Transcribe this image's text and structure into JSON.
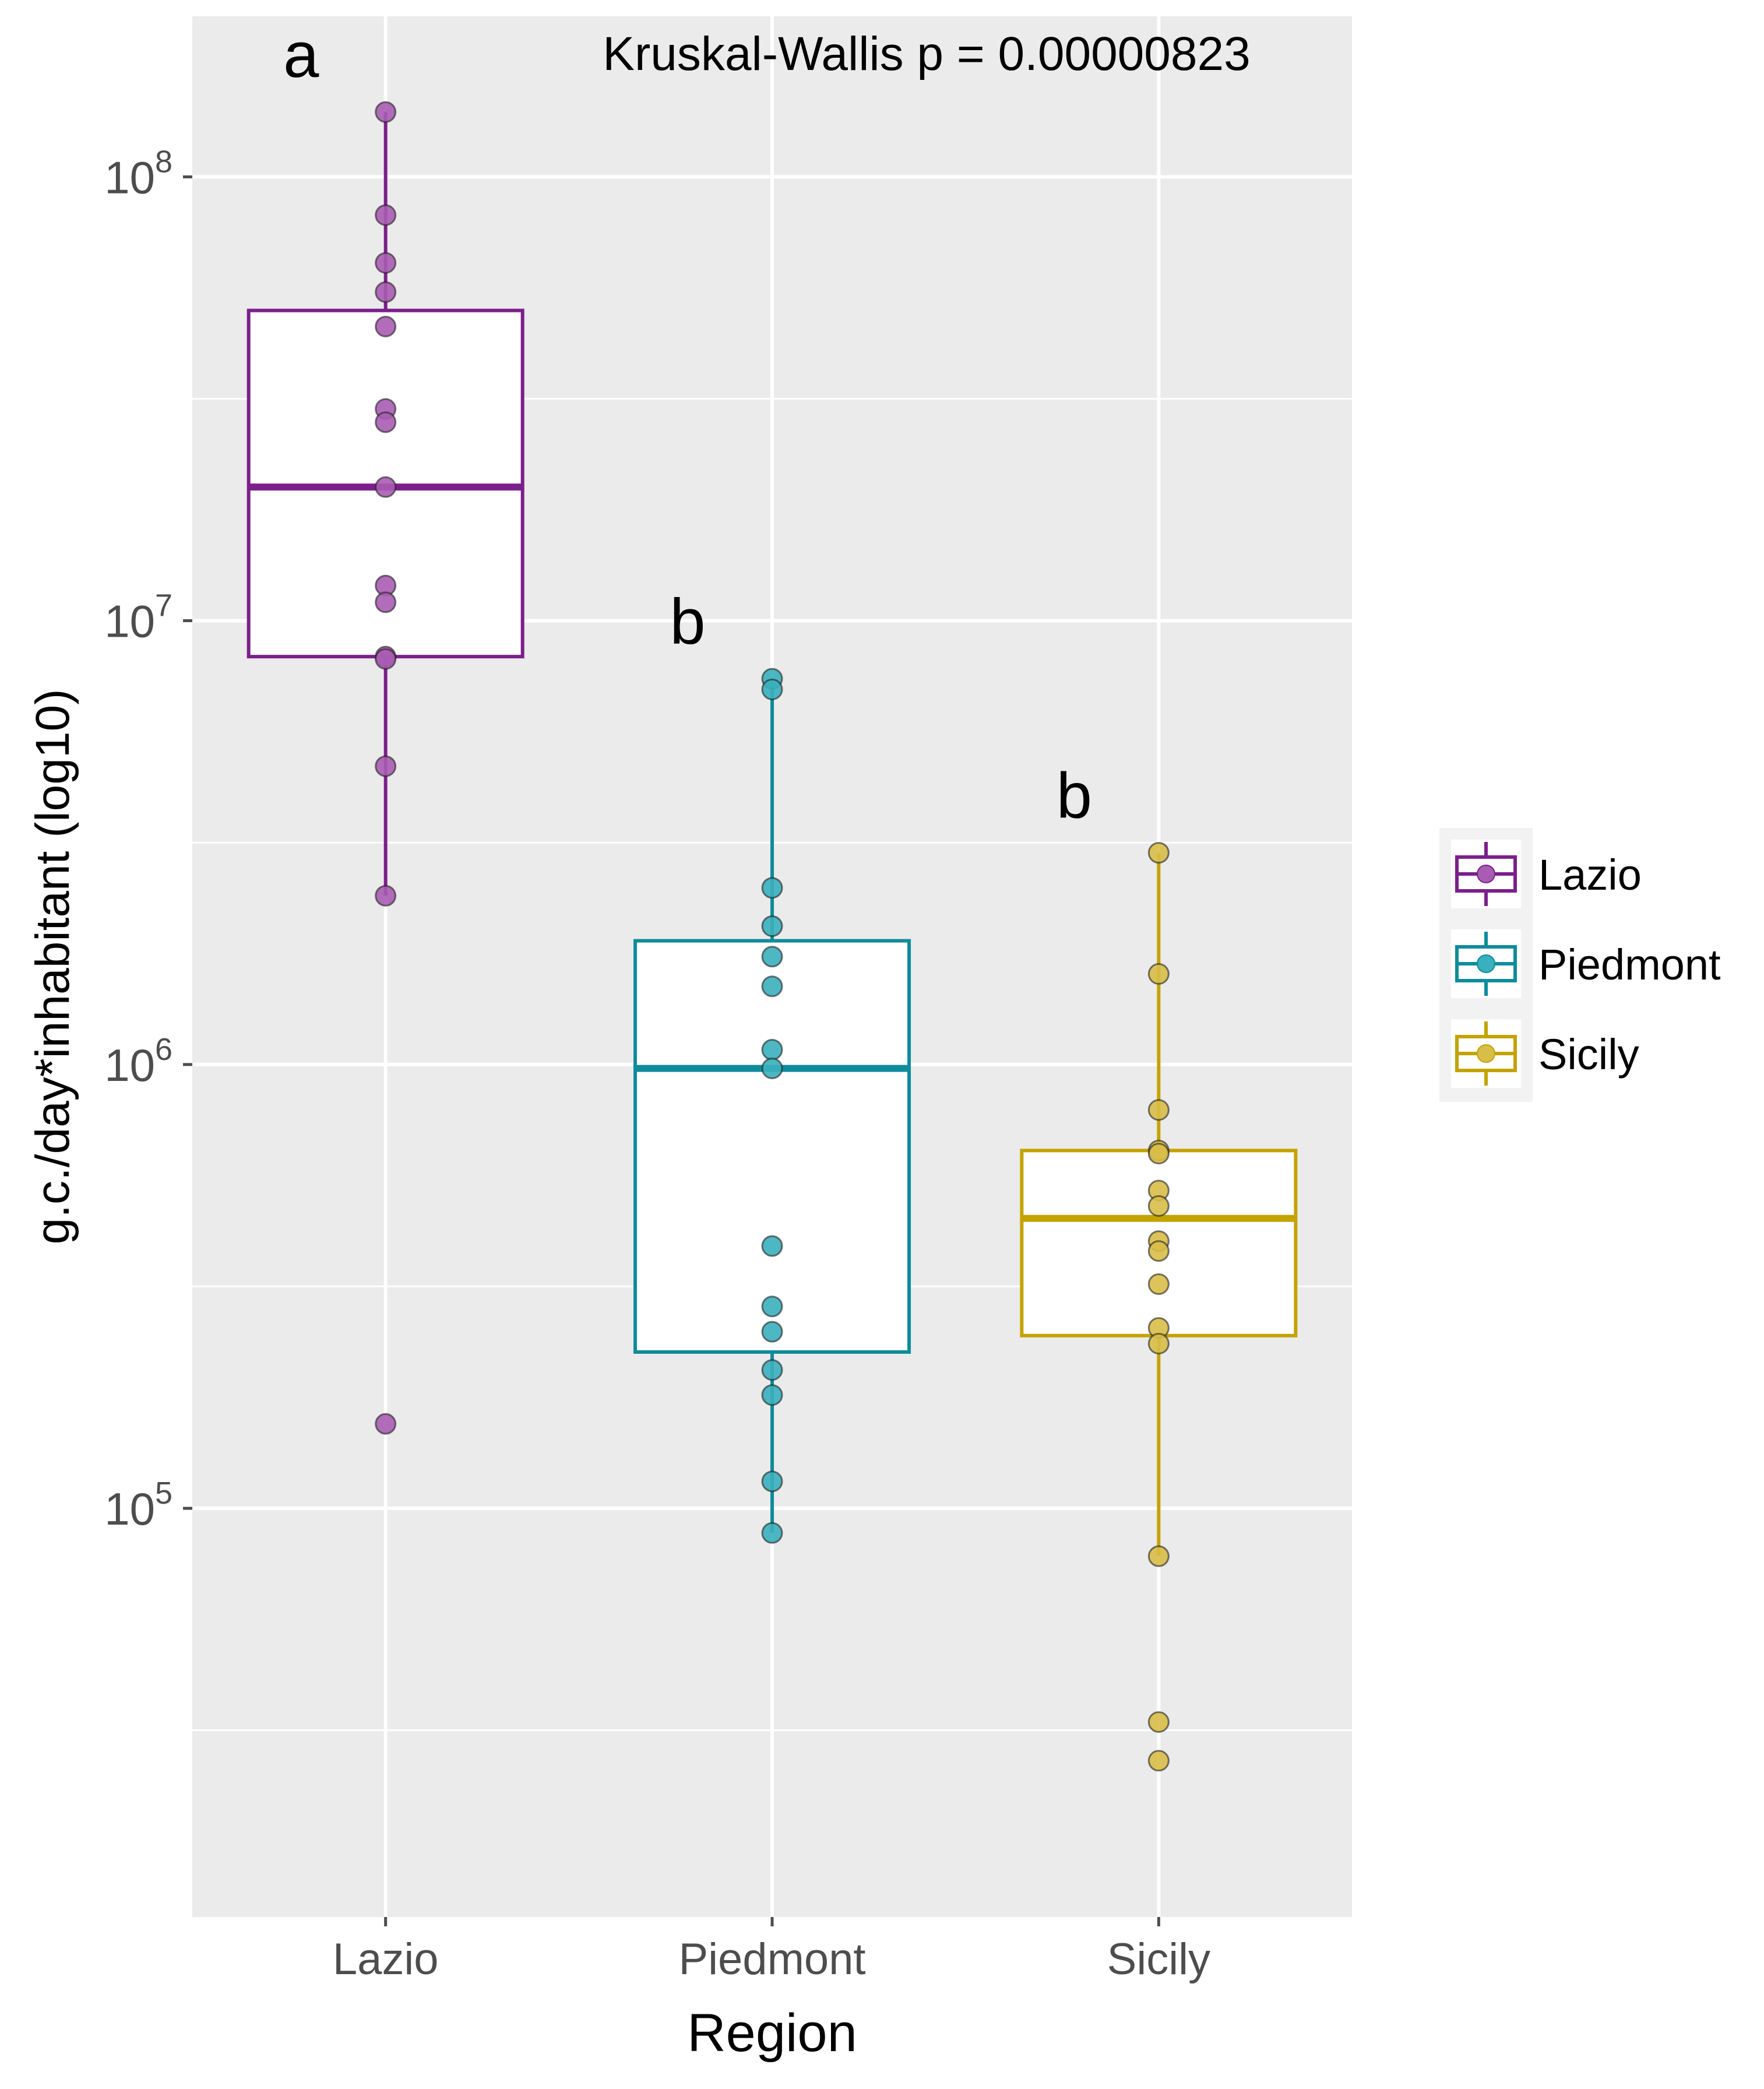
{
  "chart_data": {
    "type": "box",
    "title": "",
    "annotation": "Kruskal-Wallis p = 0.00000823",
    "xlabel": "Region",
    "ylabel": "g.c./day*inhabitant (log10)",
    "y_scale": "log10",
    "ylim": [
      12000,
      230000000
    ],
    "y_ticks": [
      {
        "value": 100000,
        "base": "10",
        "exp": "5"
      },
      {
        "value": 1000000,
        "base": "10",
        "exp": "6"
      },
      {
        "value": 10000000,
        "base": "10",
        "exp": "7"
      },
      {
        "value": 100000000,
        "base": "10",
        "exp": "8"
      }
    ],
    "y_minor_gridlines": [
      31623,
      316228,
      3162278,
      31622777
    ],
    "categories": [
      "Lazio",
      "Piedmont",
      "Sicily"
    ],
    "groups": [
      {
        "name": "Lazio",
        "color": "#7B1F8B",
        "fill_point": "#A85CB3",
        "letter": "a",
        "box": {
          "q1": 8300000,
          "median": 20000000,
          "q3": 50000000,
          "whisker_low": 2400000,
          "whisker_high": 140000000
        },
        "points": [
          140000000,
          82000000,
          64000000,
          55000000,
          46000000,
          30000000,
          28000000,
          20000000,
          12000000,
          11000000,
          8300000,
          8200000,
          4700000,
          2400000,
          155000
        ]
      },
      {
        "name": "Piedmont",
        "color": "#0E8C9B",
        "fill_point": "#3AAFBD",
        "letter": "b",
        "box": {
          "q1": 225000,
          "median": 980000,
          "q3": 1900000,
          "whisker_low": 88000,
          "whisker_high": 7400000
        },
        "points": [
          7400000,
          7000000,
          2500000,
          2050000,
          1750000,
          1500000,
          1080000,
          980000,
          390000,
          285000,
          250000,
          205000,
          180000,
          115000,
          88000
        ]
      },
      {
        "name": "Sicily",
        "color": "#C4A300",
        "fill_point": "#D8BE48",
        "letter": "b",
        "box": {
          "q1": 245000,
          "median": 450000,
          "q3": 640000,
          "whisker_low": 78000,
          "whisker_high": 3000000
        },
        "points": [
          3000000,
          1600000,
          790000,
          640000,
          630000,
          520000,
          480000,
          400000,
          380000,
          320000,
          255000,
          235000,
          78000,
          33000,
          27000
        ]
      }
    ],
    "legend": {
      "position": "right",
      "items": [
        "Lazio",
        "Piedmont",
        "Sicily"
      ]
    }
  }
}
